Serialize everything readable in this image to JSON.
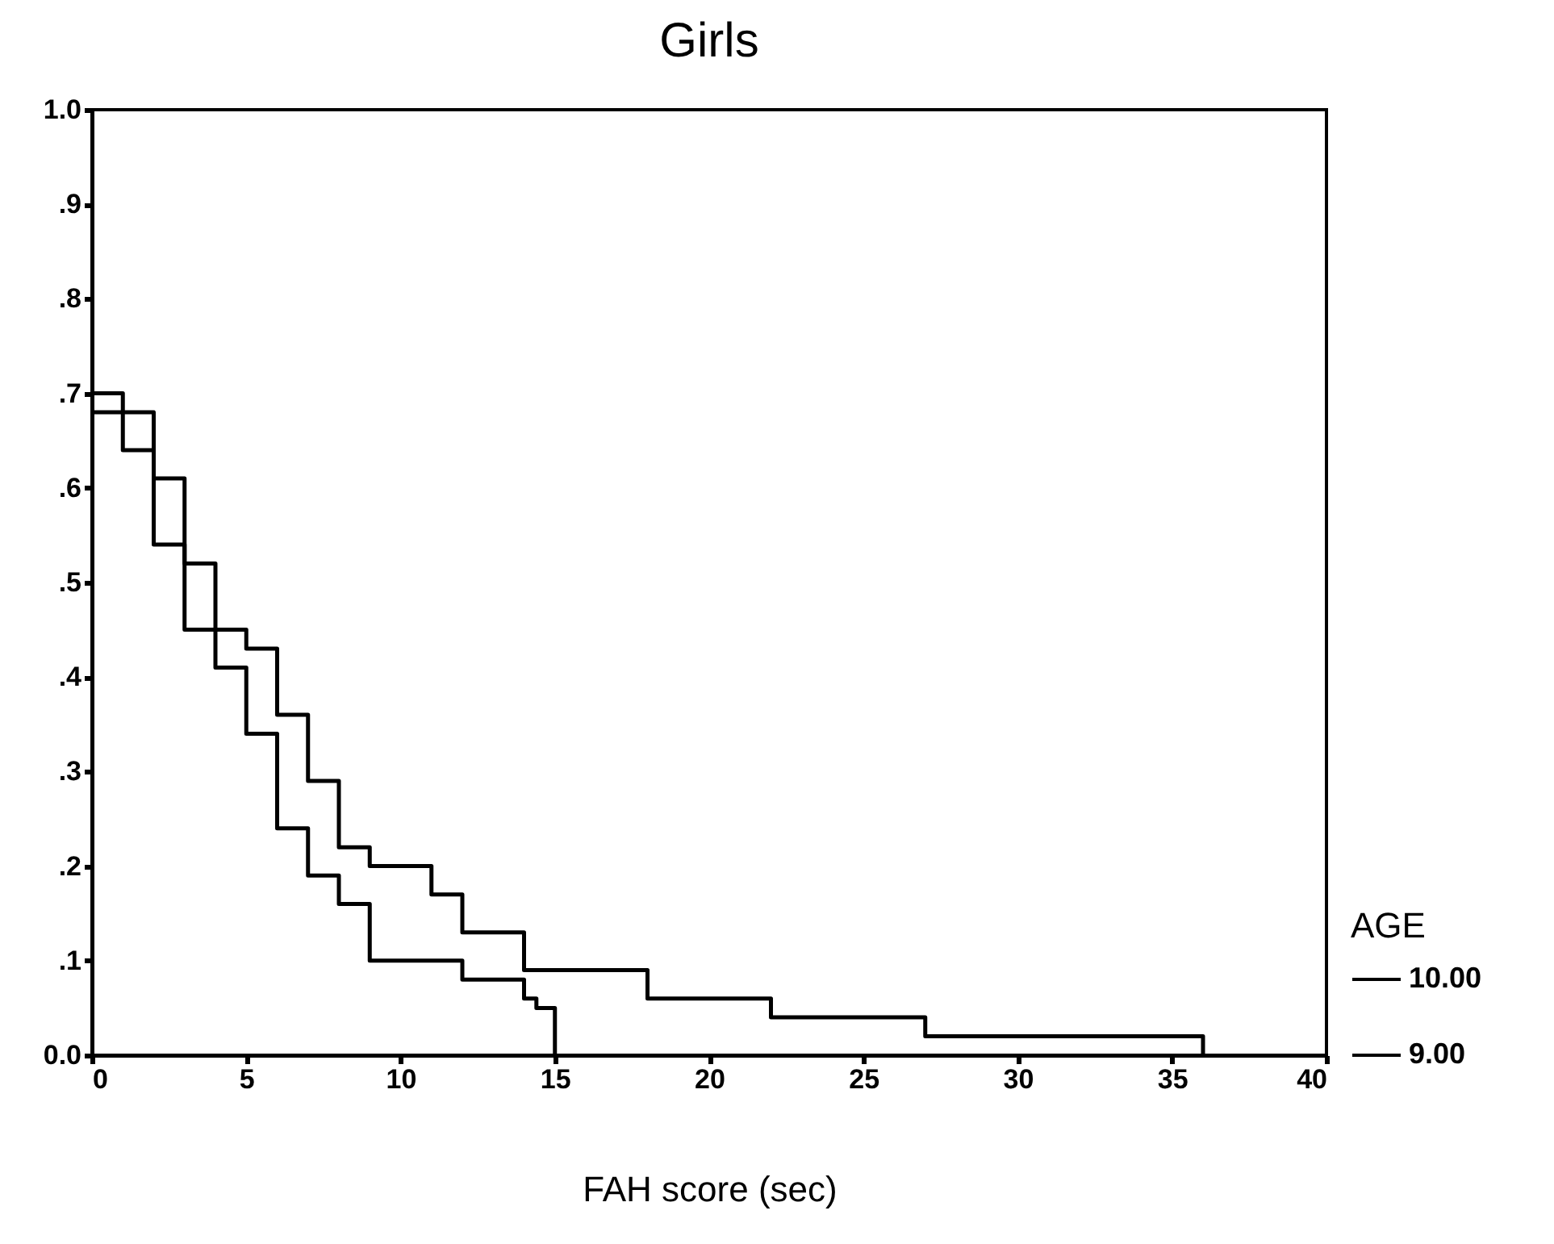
{
  "chart_data": {
    "type": "step",
    "title": "Girls",
    "xlabel": "FAH score (sec)",
    "legend_title": "AGE",
    "legend": "bottom right",
    "grid": false,
    "line_style": "solid",
    "xlim": [
      0,
      40
    ],
    "xticks": [
      0,
      5,
      10,
      15,
      20,
      25,
      30,
      35,
      40
    ],
    "ylim": [
      0,
      1
    ],
    "yticks": [
      {
        "value": 0,
        "label": "0.0"
      },
      {
        "value": 0.1,
        "label": ".1"
      },
      {
        "value": 0.2,
        "label": ".2"
      },
      {
        "value": 0.3,
        "label": ".3"
      },
      {
        "value": 0.4,
        "label": ".4"
      },
      {
        "value": 0.5,
        "label": ".5"
      },
      {
        "value": 0.6,
        "label": ".6"
      },
      {
        "value": 0.7,
        "label": ".7"
      },
      {
        "value": 0.8,
        "label": ".8"
      },
      {
        "value": 0.9,
        "label": ".9"
      },
      {
        "value": 1,
        "label": "1.0"
      }
    ],
    "series": [
      {
        "name": "10.00",
        "color": "#000000",
        "x": [
          0,
          1,
          2,
          3,
          5,
          6,
          7,
          8,
          9,
          11,
          12,
          14,
          18,
          22,
          27,
          36
        ],
        "values": [
          0.7,
          0.64,
          0.54,
          0.45,
          0.43,
          0.36,
          0.29,
          0.22,
          0.2,
          0.17,
          0.13,
          0.09,
          0.06,
          0.04,
          0.02,
          0
        ]
      },
      {
        "name": "9.00",
        "color": "#000000",
        "x": [
          0,
          2,
          3,
          4,
          5,
          6,
          7,
          8,
          9,
          12,
          14,
          14.4,
          15
        ],
        "values": [
          0.68,
          0.61,
          0.52,
          0.41,
          0.34,
          0.24,
          0.19,
          0.16,
          0.1,
          0.08,
          0.06,
          0.05,
          0
        ]
      }
    ]
  }
}
